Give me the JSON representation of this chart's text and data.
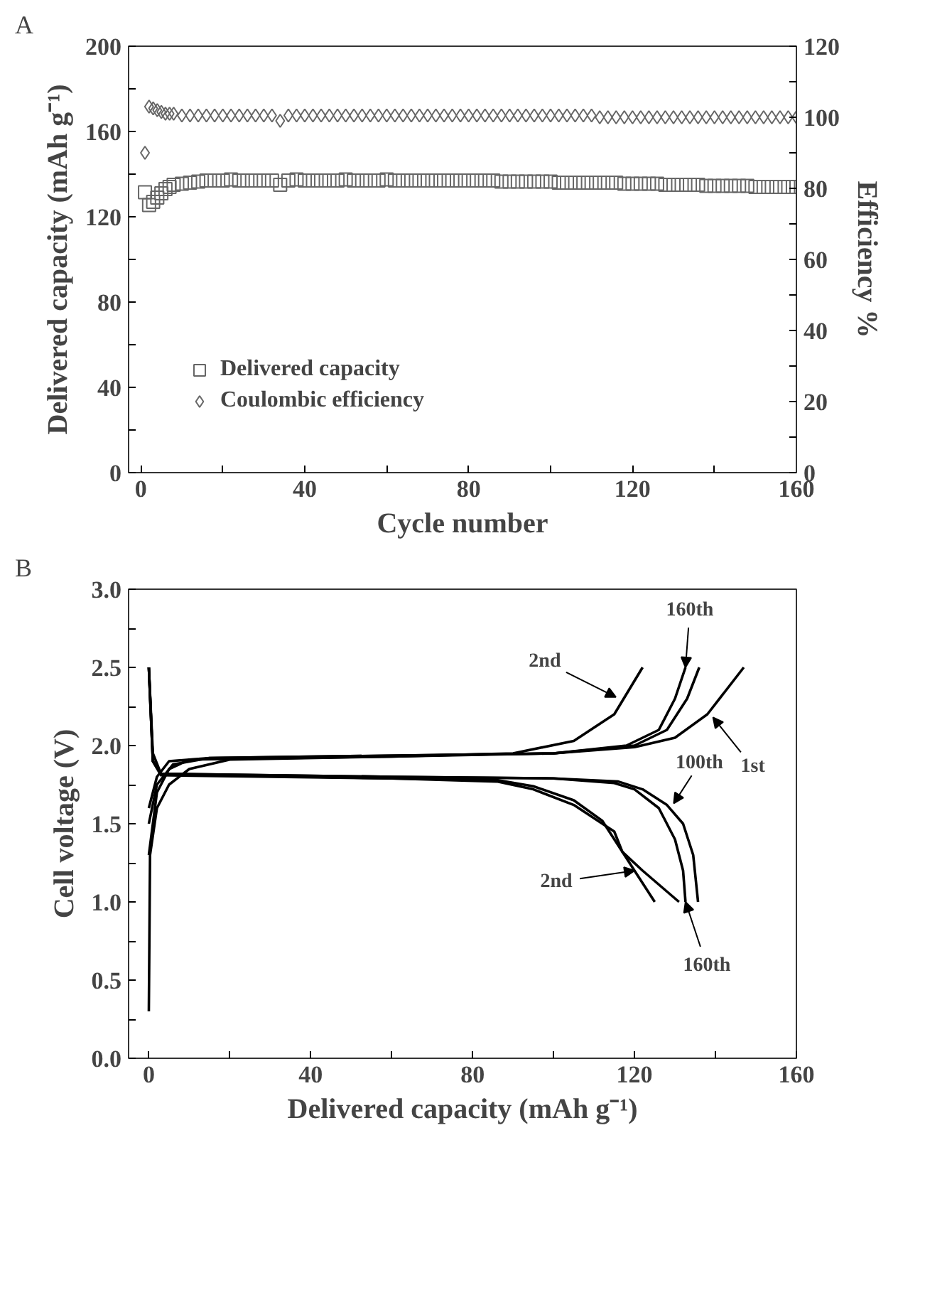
{
  "chart_data": [
    {
      "type": "scatter",
      "title": "A",
      "xlabel": "Cycle number",
      "ylabel": "Delivered capacity (mAh g⁻¹)",
      "y2label": "Efficiency %",
      "x": [
        1,
        2,
        3,
        4,
        5,
        6,
        7,
        8,
        10,
        12,
        14,
        16,
        18,
        20,
        22,
        24,
        26,
        28,
        30,
        32,
        34,
        36,
        38,
        40,
        42,
        44,
        46,
        48,
        50,
        52,
        54,
        56,
        58,
        60,
        62,
        64,
        66,
        68,
        70,
        72,
        74,
        76,
        78,
        80,
        82,
        84,
        86,
        88,
        90,
        92,
        94,
        96,
        98,
        100,
        102,
        104,
        106,
        108,
        110,
        112,
        114,
        116,
        118,
        120,
        122,
        124,
        126,
        128,
        130,
        132,
        134,
        136,
        138,
        140,
        142,
        144,
        146,
        148,
        150,
        152,
        154,
        156,
        158,
        160
      ],
      "series": [
        {
          "name": "Delivered capacity",
          "color": "#666666",
          "marker": "square",
          "values": [
            131.5,
            125.5,
            127,
            129,
            131,
            133,
            134,
            135,
            135.5,
            136,
            136.5,
            137,
            137,
            137,
            137.5,
            137,
            137,
            137,
            137,
            137,
            135,
            137,
            137.5,
            137,
            137,
            137,
            137,
            137,
            137.5,
            137,
            137,
            137,
            137,
            137.5,
            137,
            137,
            137,
            137,
            137,
            137,
            137,
            137,
            137,
            137,
            137,
            137,
            137,
            136.5,
            136.5,
            136.5,
            136.5,
            136.5,
            136.5,
            136.5,
            136,
            136,
            136,
            136,
            136,
            136,
            136,
            136,
            135.5,
            135.5,
            135.5,
            135.5,
            135.5,
            135,
            135,
            135,
            135,
            135,
            134.5,
            134.5,
            134.5,
            134.5,
            134.5,
            134.5,
            134,
            134,
            134,
            134,
            134,
            134
          ]
        },
        {
          "name": "Coulombic efficiency",
          "color": "#666666",
          "marker": "diamond",
          "axis": "y2",
          "values": [
            90,
            103,
            102.5,
            102,
            101.5,
            101,
            101,
            101,
            100.5,
            100.5,
            100.5,
            100.5,
            100.5,
            100.5,
            100.5,
            100.5,
            100.5,
            100.5,
            100.5,
            100.5,
            99,
            100.5,
            100.5,
            100.5,
            100.5,
            100.5,
            100.5,
            100.5,
            100.5,
            100.5,
            100.5,
            100.5,
            100.5,
            100.5,
            100.5,
            100.5,
            100.5,
            100.5,
            100.5,
            100.5,
            100.5,
            100.5,
            100.5,
            100.5,
            100.5,
            100.5,
            100.5,
            100.5,
            100.5,
            100.5,
            100.5,
            100.5,
            100.5,
            100.5,
            100.5,
            100.5,
            100.5,
            100.5,
            100.5,
            100,
            100,
            100,
            100,
            100,
            100,
            100,
            100,
            100,
            100,
            100,
            100,
            100,
            100,
            100,
            100,
            100,
            100,
            100,
            100,
            100,
            100,
            100,
            100,
            100
          ]
        }
      ],
      "xlim": [
        -3,
        160
      ],
      "xticks": [
        0,
        {
          "value": 20,
          "label": null
        },
        40,
        {
          "value": 60,
          "label": null
        },
        80,
        {
          "value": 100,
          "label": null
        },
        120,
        {
          "value": 140,
          "label": null
        },
        160
      ],
      "ylim": [
        0,
        200
      ],
      "yticks": [
        0,
        {
          "value": 20,
          "label": null
        },
        40,
        {
          "value": 60,
          "label": null
        },
        80,
        {
          "value": 100,
          "label": null
        },
        120,
        {
          "value": 140,
          "label": null
        },
        160,
        {
          "value": 180,
          "label": null
        },
        200
      ],
      "y2lim": [
        0,
        120
      ],
      "y2ticks": [
        0,
        {
          "value": 10,
          "label": null
        },
        20,
        {
          "value": 30,
          "label": null
        },
        40,
        {
          "value": 50,
          "label": null
        },
        60,
        {
          "value": 70,
          "label": null
        },
        80,
        {
          "value": 90,
          "label": null
        },
        100,
        {
          "value": 110,
          "label": null
        },
        120
      ],
      "legend": "bottom left",
      "grid": false
    },
    {
      "type": "line",
      "title": "B",
      "xlabel": "Delivered capacity (mAh g⁻¹)",
      "ylabel": "Cell voltage (V)",
      "series": [
        {
          "color": "#000000",
          "x": [
            0,
            1,
            3,
            20,
            60,
            86,
            95,
            105,
            115,
            117,
            122,
            131
          ],
          "values": [
            2.5,
            1.95,
            1.82,
            1.81,
            1.79,
            1.77,
            1.72,
            1.62,
            1.45,
            1.32,
            1.2,
            1.0
          ]
        },
        {
          "color": "#000000",
          "x": [
            0,
            1,
            3,
            60,
            86,
            95,
            105,
            112,
            117,
            120,
            125
          ],
          "values": [
            2.5,
            1.9,
            1.81,
            1.79,
            1.78,
            1.74,
            1.65,
            1.52,
            1.32,
            1.2,
            1.0
          ]
        },
        {
          "color": "#000000",
          "x": [
            0,
            1,
            3,
            60,
            100,
            115,
            120,
            126,
            130,
            132,
            132.6
          ],
          "values": [
            2.5,
            1.9,
            1.82,
            1.8,
            1.79,
            1.76,
            1.72,
            1.6,
            1.4,
            1.2,
            1.0
          ]
        },
        {
          "color": "#000000",
          "x": [
            0,
            1,
            3,
            60,
            100,
            116,
            122,
            128,
            132,
            134.5,
            135.7
          ],
          "values": [
            2.5,
            1.9,
            1.82,
            1.8,
            1.79,
            1.77,
            1.72,
            1.62,
            1.5,
            1.3,
            1.0
          ]
        },
        {
          "color": "#000000",
          "x": [
            0,
            0.3,
            2,
            5,
            10,
            20,
            60,
            100,
            120,
            130,
            138,
            147
          ],
          "values": [
            0.3,
            1.3,
            1.6,
            1.75,
            1.85,
            1.91,
            1.93,
            1.95,
            1.99,
            2.05,
            2.2,
            2.5
          ]
        },
        {
          "color": "#000000",
          "x": [
            0,
            2,
            5,
            10,
            60,
            90,
            105,
            115,
            122
          ],
          "values": [
            1.3,
            1.7,
            1.85,
            1.91,
            1.93,
            1.95,
            2.03,
            2.2,
            2.5
          ]
        },
        {
          "color": "#000000",
          "x": [
            0,
            2,
            6,
            15,
            100,
            120,
            128,
            133,
            136
          ],
          "values": [
            1.5,
            1.75,
            1.88,
            1.92,
            1.95,
            2.0,
            2.1,
            2.3,
            2.5
          ]
        },
        {
          "color": "#000000",
          "x": [
            0,
            2,
            5,
            15,
            100,
            118,
            126,
            130,
            132.6
          ],
          "values": [
            1.6,
            1.8,
            1.9,
            1.92,
            1.95,
            2.0,
            2.1,
            2.3,
            2.5
          ]
        }
      ],
      "annotations": [
        {
          "text": "160th",
          "x": 132.6,
          "y": 2.5
        },
        {
          "text": "2nd",
          "x": 115.4,
          "y": 2.31
        },
        {
          "text": "1st",
          "x": 139.4,
          "y": 2.18
        },
        {
          "text": "100th",
          "x": 129.7,
          "y": 1.63
        },
        {
          "text": "2nd",
          "x": 120,
          "y": 1.2
        },
        {
          "text": "160th",
          "x": 132.6,
          "y": 1.0
        }
      ],
      "xlim": [
        -5,
        160
      ],
      "xticks": [
        0,
        {
          "value": 20,
          "label": null
        },
        40,
        {
          "value": 60,
          "label": null
        },
        80,
        {
          "value": 100,
          "label": null
        },
        120,
        {
          "value": 140,
          "label": null
        },
        160
      ],
      "ylim": [
        0,
        3
      ],
      "yticks": [
        {
          "value": 0,
          "label": "0.0"
        },
        {
          "value": 0.25,
          "label": null
        },
        {
          "value": 0.5,
          "label": "0.5"
        },
        {
          "value": 0.75,
          "label": null
        },
        {
          "value": 1,
          "label": "1.0"
        },
        {
          "value": 1.25,
          "label": null
        },
        {
          "value": 1.5,
          "label": "1.5"
        },
        {
          "value": 1.75,
          "label": null
        },
        {
          "value": 2,
          "label": "2.0"
        },
        {
          "value": 2.25,
          "label": null
        },
        {
          "value": 2.5,
          "label": "2.5"
        },
        {
          "value": 2.75,
          "label": null
        },
        {
          "value": 3,
          "label": "3.0"
        }
      ],
      "grid": false
    }
  ]
}
